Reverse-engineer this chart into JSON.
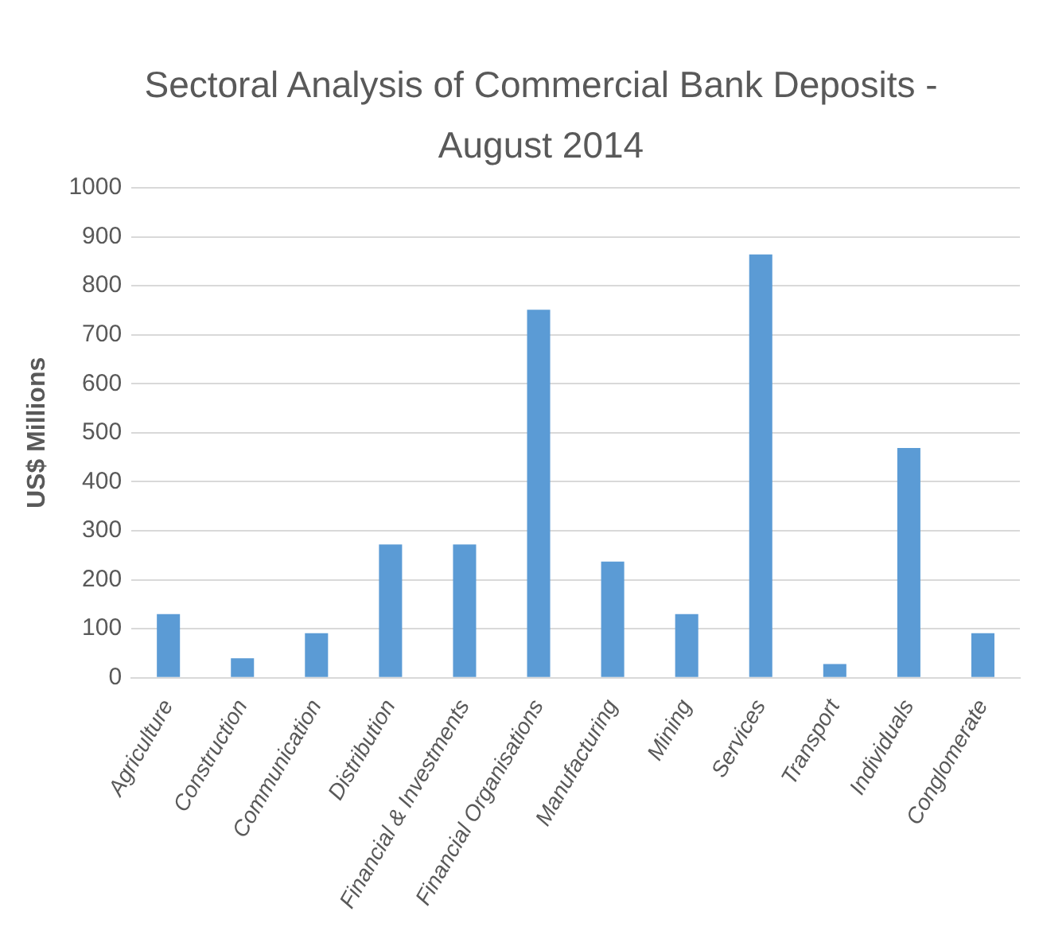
{
  "chart_data": {
    "type": "bar",
    "title": "Sectoral Analysis of Commercial Bank Deposits - August 2014",
    "ylabel": "US$ Millions",
    "categories": [
      "Agriculture",
      "Construction",
      "Communication",
      "Distribution",
      "Financial & Investments",
      "Financial Organisations",
      "Manufacturing",
      "Mining",
      "Services",
      "Transport",
      "Individuals",
      "Conglomerate"
    ],
    "values": [
      130,
      40,
      91,
      272,
      272,
      751,
      237,
      130,
      864,
      28,
      469,
      91
    ],
    "color": "#5b9bd5",
    "ylim": [
      0,
      1000
    ],
    "yticks": [
      0,
      100,
      200,
      300,
      400,
      500,
      600,
      700,
      800,
      900,
      1000
    ],
    "grid": "y",
    "legend": false
  }
}
